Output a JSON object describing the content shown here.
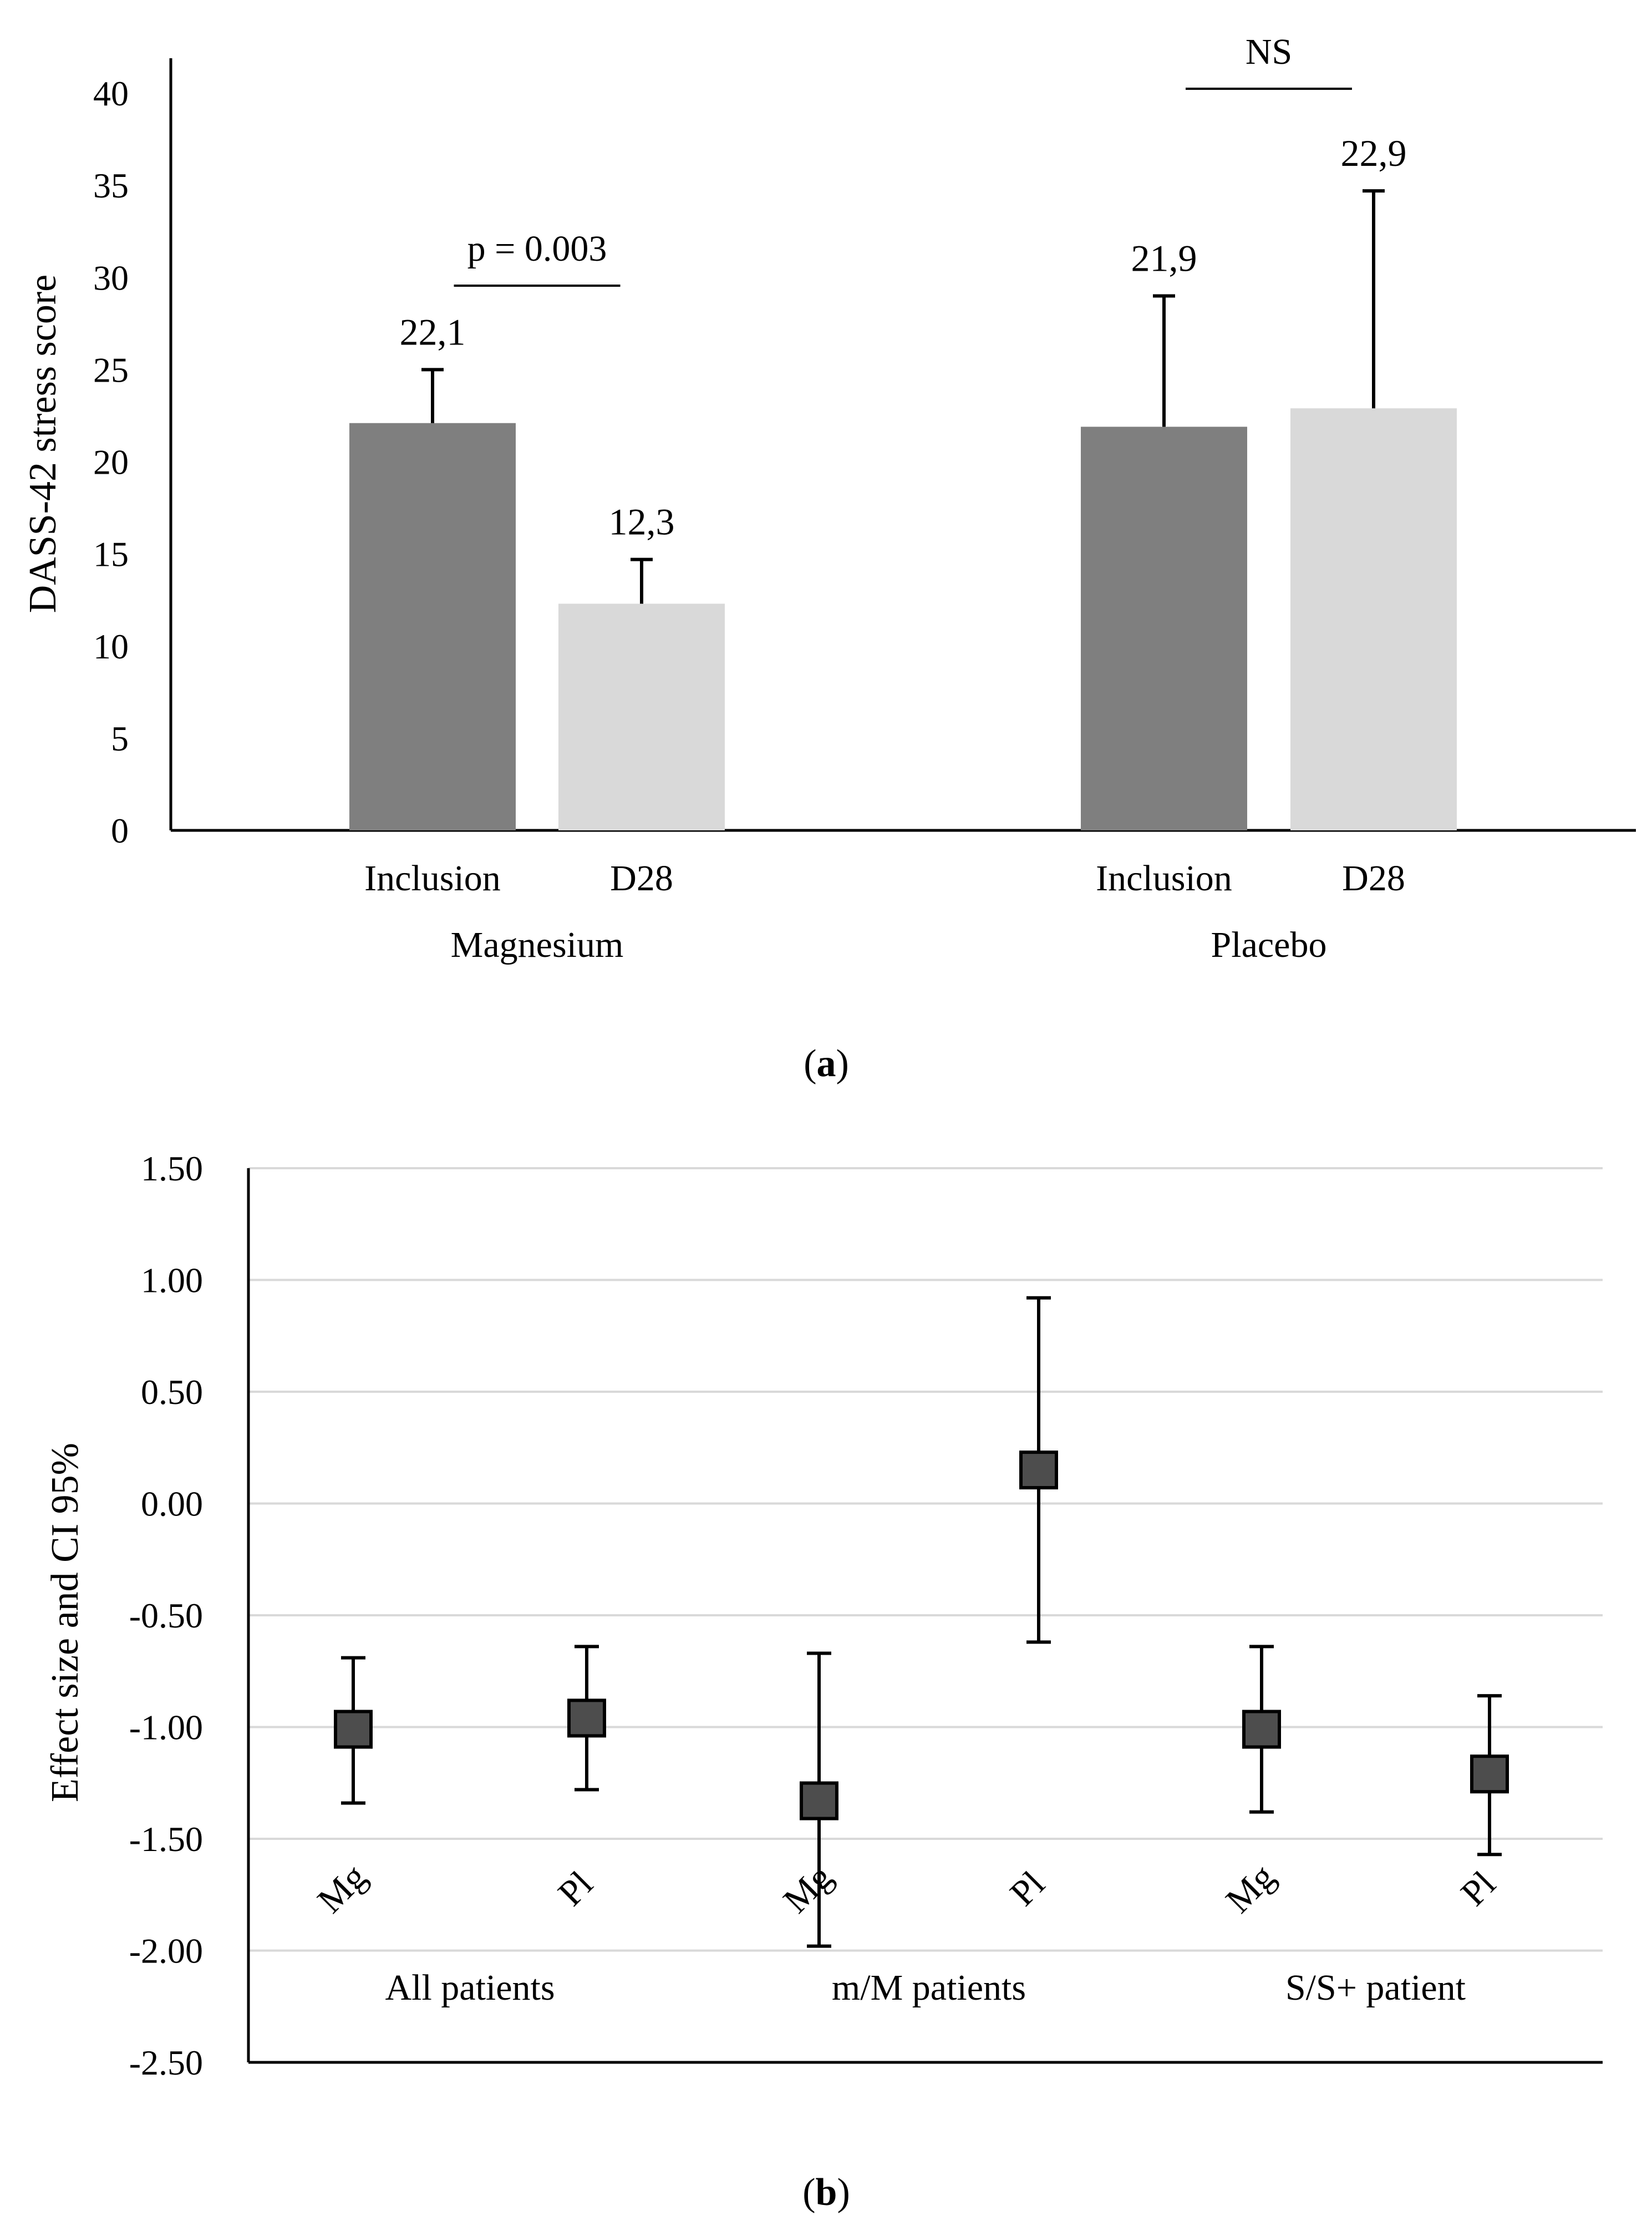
{
  "chart_data": [
    {
      "panel": "a",
      "type": "bar",
      "ylabel": "DASS-42 stress score",
      "ylim": [
        0,
        40
      ],
      "yticks": [
        "0",
        "5",
        "10",
        "15",
        "20",
        "25",
        "30",
        "35",
        "40"
      ],
      "groups": [
        {
          "name": "Magnesium",
          "bars": [
            {
              "label": "Inclusion",
              "value": 22.1,
              "error_upper": 25.0,
              "value_label": "22,1",
              "color": "#7f7f7f"
            },
            {
              "label": "D28",
              "value": 12.3,
              "error_upper": 14.7,
              "value_label": "12,3",
              "color": "#d9d9d9"
            }
          ],
          "comparison": "p = 0.003"
        },
        {
          "name": "Placebo",
          "bars": [
            {
              "label": "Inclusion",
              "value": 21.9,
              "error_upper": 29.0,
              "value_label": "21,9",
              "color": "#7f7f7f"
            },
            {
              "label": "D28",
              "value": 22.9,
              "error_upper": 34.7,
              "value_label": "22,9",
              "color": "#d9d9d9"
            }
          ],
          "comparison": "NS"
        }
      ],
      "caption": "(a)",
      "caption_letter": "a"
    },
    {
      "panel": "b",
      "type": "scatter",
      "ylabel": "Effect size and CI 95%",
      "ylim": [
        -2.5,
        1.5
      ],
      "yticks": [
        "-2.50",
        "-2.00",
        "-1.50",
        "-1.00",
        "-0.50",
        "0.00",
        "0.50",
        "1.00",
        "1.50"
      ],
      "grid": true,
      "groups": [
        {
          "name": "All patients",
          "points": [
            {
              "label": "Mg",
              "value": -1.01,
              "ci_low": -1.34,
              "ci_high": -0.69
            },
            {
              "label": "Pl",
              "value": -0.96,
              "ci_low": -1.28,
              "ci_high": -0.64
            }
          ]
        },
        {
          "name": "m/M patients",
          "points": [
            {
              "label": "Mg",
              "value": -1.33,
              "ci_low": -1.98,
              "ci_high": -0.67
            },
            {
              "label": "Pl",
              "value": 0.15,
              "ci_low": -0.62,
              "ci_high": 0.92
            }
          ]
        },
        {
          "name": "S/S+ patient",
          "points": [
            {
              "label": "Mg",
              "value": -1.01,
              "ci_low": -1.38,
              "ci_high": -0.64
            },
            {
              "label": "Pl",
              "value": -1.21,
              "ci_low": -1.57,
              "ci_high": -0.86
            }
          ]
        }
      ],
      "caption": "(b)",
      "caption_letter": "b"
    }
  ]
}
